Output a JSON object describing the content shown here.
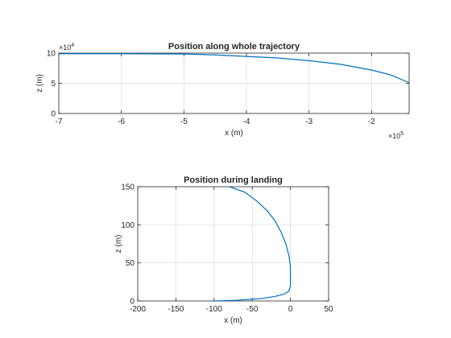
{
  "chart_data": [
    {
      "type": "line",
      "title": "Position along whole trajectory",
      "xlabel": "x (m)",
      "ylabel": "z (m)",
      "xlim": [
        -7,
        -1.4
      ],
      "ylim": [
        0,
        10
      ],
      "x_exponent": "5",
      "y_exponent": "4",
      "x_exponent_base": "×10",
      "y_exponent_base": "×10",
      "xticks": [
        -7,
        -6,
        -5,
        -4,
        -3,
        -2
      ],
      "xtick_labels": [
        "-7",
        "-6",
        "-5",
        "-4",
        "-3",
        "-2"
      ],
      "yticks": [
        0,
        5,
        10
      ],
      "ytick_labels": [
        "0",
        "5",
        "10"
      ],
      "grid": true,
      "color": "#0072bd",
      "series": [
        {
          "x": [
            -7.0,
            -6.0,
            -5.0,
            -4.5,
            -4.0,
            -3.5,
            -3.0,
            -2.5,
            -2.0,
            -1.7,
            -1.4
          ],
          "y": [
            9.9,
            9.9,
            9.85,
            9.7,
            9.45,
            9.2,
            8.75,
            8.15,
            7.2,
            6.4,
            5.1
          ]
        }
      ]
    },
    {
      "type": "line",
      "title": "Position during landing",
      "xlabel": "x (m)",
      "ylabel": "z (m)",
      "xlim": [
        -200,
        50
      ],
      "ylim": [
        0,
        150
      ],
      "xticks": [
        -200,
        -150,
        -100,
        -50,
        0,
        50
      ],
      "xtick_labels": [
        "-200",
        "-150",
        "-100",
        "-50",
        "0",
        "50"
      ],
      "yticks": [
        0,
        50,
        100,
        150
      ],
      "ytick_labels": [
        "0",
        "50",
        "100",
        "150"
      ],
      "grid": true,
      "color": "#0072bd",
      "series": [
        {
          "x": [
            -100,
            -70,
            -40,
            -20,
            -8,
            -2,
            0,
            0,
            -2,
            -6,
            -12,
            -20,
            -30,
            -45,
            -60,
            -80
          ],
          "y": [
            0,
            1,
            3,
            6,
            9,
            13,
            20,
            45,
            60,
            75,
            90,
            105,
            118,
            132,
            143,
            150
          ]
        }
      ]
    }
  ]
}
